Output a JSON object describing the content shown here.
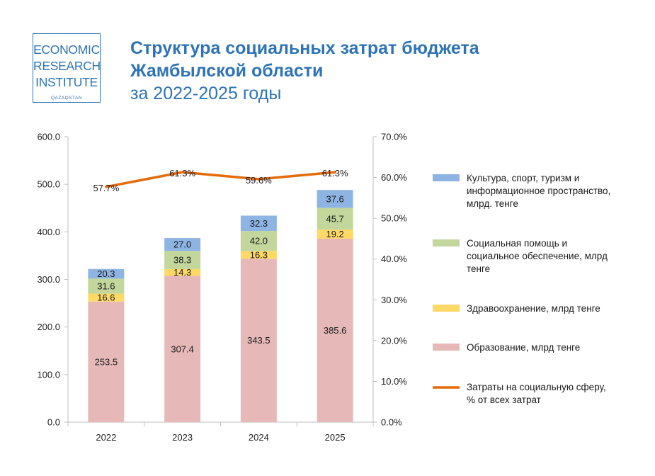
{
  "logo": {
    "line1": "ECONOMIC",
    "line2": "RESEARCH",
    "line3": "INSTITUTE",
    "line4": "QAZAQSTAN"
  },
  "header": {
    "title_line1": "Структура социальных затрат бюджета",
    "title_line2": "Жамбылской области",
    "subtitle": "за 2022-2025 годы"
  },
  "colors": {
    "brand": "#2e74b5",
    "culture": "#8eb4e3",
    "social": "#c3d69b",
    "health": "#ffd966",
    "education": "#e6b9b8",
    "line": "#e36c09"
  },
  "chart_data": {
    "type": "bar",
    "stacked": true,
    "categories": [
      "2022",
      "2023",
      "2024",
      "2025"
    ],
    "series": [
      {
        "key": "education",
        "name": "Образование, млрд  тенге",
        "values": [
          253.5,
          307.4,
          343.5,
          385.6
        ],
        "labels": [
          "253.5",
          "307.4",
          "343.5",
          "385.6"
        ]
      },
      {
        "key": "health",
        "name": "Здравоохранение, млрд  тенге",
        "values": [
          16.6,
          14.3,
          16.3,
          19.2
        ],
        "labels": [
          "16.6",
          "14.3",
          "16.3",
          "19.2"
        ]
      },
      {
        "key": "social",
        "name": "Социальная помощь и социальное обеспечение, млрд тенге",
        "values": [
          31.6,
          38.3,
          42.0,
          45.7
        ],
        "labels": [
          "31.6",
          "38.3",
          "42.0",
          "45.7"
        ]
      },
      {
        "key": "culture",
        "name": "Культура, спорт, туризм и информационное пространство, млрд. тенге",
        "values": [
          20.3,
          27.0,
          32.3,
          37.6
        ],
        "labels": [
          "20.3",
          "27.0",
          "32.3",
          "37.6"
        ]
      }
    ],
    "line_series": {
      "key": "line",
      "name": "Затраты на социальную сферу, % от всех затрат",
      "values": [
        57.7,
        61.3,
        59.6,
        61.3
      ],
      "labels": [
        "57.7%",
        "61.3%",
        "59.6%",
        "61.3%"
      ]
    },
    "ylim_left": [
      0,
      600
    ],
    "yticks_left": [
      "0.0",
      "100.0",
      "200.0",
      "300.0",
      "400.0",
      "500.0",
      "600.0"
    ],
    "ylim_right": [
      0,
      70
    ],
    "yticks_right": [
      "0.0%",
      "10.0%",
      "20.0%",
      "30.0%",
      "40.0%",
      "50.0%",
      "60.0%",
      "70.0%"
    ],
    "legend": [
      {
        "key": "culture",
        "lines": [
          "Культура, спорт, туризм и",
          "информационное пространство,",
          "млрд. тенге"
        ]
      },
      {
        "key": "social",
        "lines": [
          "Социальная помощь и",
          "социальное обеспечение, млрд",
          "тенге"
        ]
      },
      {
        "key": "health",
        "lines": [
          "Здравоохранение, млрд  тенге"
        ]
      },
      {
        "key": "education",
        "lines": [
          "Образование, млрд  тенге"
        ]
      },
      {
        "key": "line",
        "lines": [
          "Затраты на социальную сферу,",
          "% от всех затрат"
        ]
      }
    ],
    "legend_position": "right",
    "grid": false
  }
}
